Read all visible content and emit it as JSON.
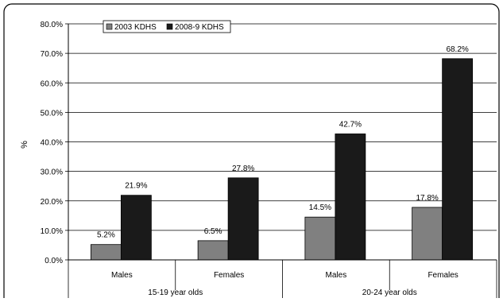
{
  "chart_data": {
    "type": "bar",
    "title": "",
    "ylabel": "%",
    "xlabel": "",
    "ylim": [
      0,
      80
    ],
    "yticks": [
      "0.0%",
      "10.0%",
      "20.0%",
      "30.0%",
      "40.0%",
      "50.0%",
      "60.0%",
      "70.0%",
      "80.0%"
    ],
    "categories": [
      "Males",
      "Females",
      "Males",
      "Females"
    ],
    "groups": [
      {
        "label": "15-19 year olds",
        "categories": [
          "Males",
          "Females"
        ]
      },
      {
        "label": "20-24 year olds",
        "categories": [
          "Males",
          "Females"
        ]
      }
    ],
    "series": [
      {
        "name": "2003 KDHS",
        "color": "#808080",
        "values": [
          5.2,
          6.5,
          14.5,
          17.8
        ],
        "labels": [
          "5.2%",
          "6.5%",
          "14.5%",
          "17.8%"
        ]
      },
      {
        "name": "2008-9 KDHS",
        "color": "#1a1a1a",
        "values": [
          21.9,
          27.8,
          42.7,
          68.2
        ],
        "labels": [
          "21.9%",
          "27.8%",
          "42.7%",
          "68.2%"
        ]
      }
    ],
    "grid": true,
    "legend_position": "top-left"
  }
}
